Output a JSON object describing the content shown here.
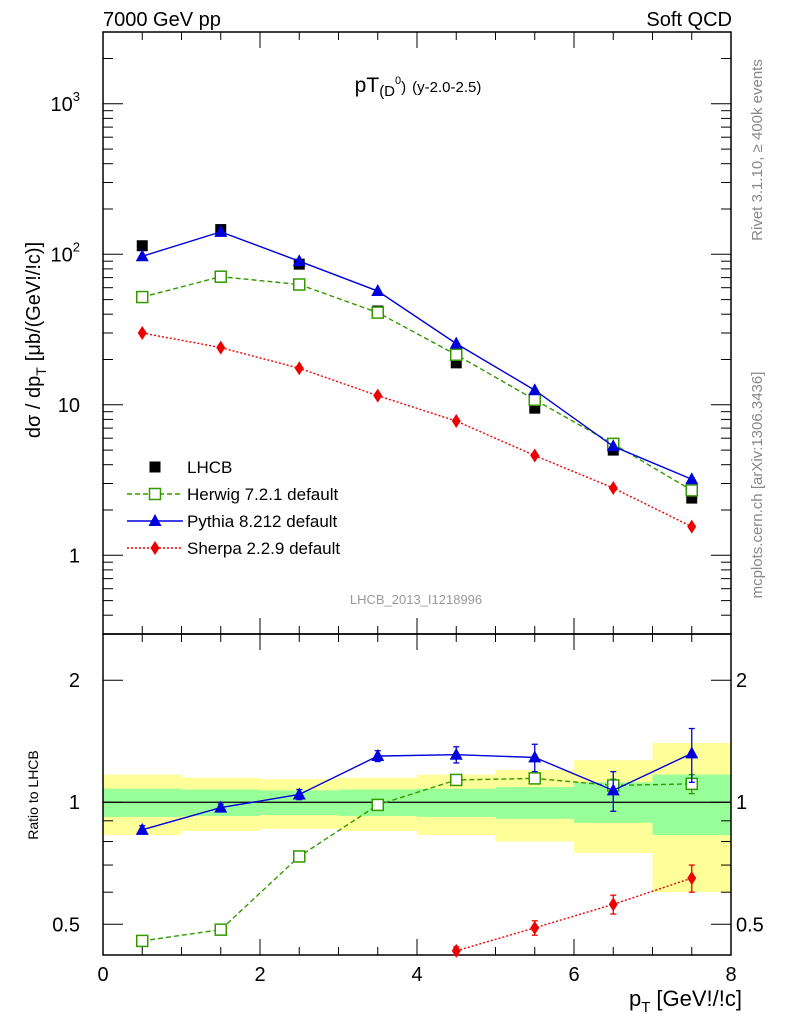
{
  "header": {
    "left": "7000 GeV pp",
    "right": "Soft QCD"
  },
  "side_labels": {
    "rivet": "Rivet 3.1.10, ≥ 400k events",
    "mcplots": "mcplots.cern.ch [arXiv:1306.3436]"
  },
  "chart_data": [
    {
      "type": "scatter",
      "panel": "main",
      "title_main": "pT",
      "title_sub": "(D",
      "title_sup": "0",
      "title_close": ")",
      "title_suffix": "(y-2.0-2.5)",
      "ylabel": "dσ / dp",
      "ylabel_sub": "T",
      "ylabel_unit": "[μb/(GeV!/!c)]",
      "yscale": "log",
      "ylim": [
        0.3,
        3000
      ],
      "xlim": [
        0,
        8
      ],
      "grid": false,
      "legend_position": "lower-left",
      "y_tick_labels": [
        "1",
        "10",
        "10",
        "10"
      ],
      "y_tick_sups": [
        "",
        "",
        "2",
        "3"
      ],
      "watermark": "LHCB_2013_I1218996",
      "x": [
        0.5,
        1.5,
        2.5,
        3.5,
        4.5,
        5.5,
        6.5,
        7.5
      ],
      "series": [
        {
          "name": "LHCB",
          "color": "#000000",
          "marker": "filled-square",
          "line": "none",
          "values": [
            114,
            146,
            86,
            42,
            19,
            9.5,
            5.0,
            2.4
          ]
        },
        {
          "name": "Herwig 7.2.1 default",
          "color": "#339900",
          "marker": "open-square",
          "line": "dashed",
          "values": [
            52,
            71,
            63,
            41,
            21.5,
            10.8,
            5.5,
            2.7
          ]
        },
        {
          "name": "Pythia 8.212 default",
          "color": "#0000dd",
          "marker": "filled-triangle",
          "line": "solid",
          "values": [
            97,
            141,
            90,
            57,
            25.5,
            12.5,
            5.3,
            3.2
          ]
        },
        {
          "name": "Sherpa 2.2.9 default",
          "color": "#ee0000",
          "marker": "filled-diamond",
          "line": "dotted",
          "values": [
            30,
            24,
            17.5,
            11.5,
            7.8,
            4.6,
            2.8,
            1.55
          ]
        }
      ]
    },
    {
      "type": "scatter",
      "panel": "ratio",
      "ylabel": "Ratio to LHCB",
      "yscale": "log",
      "ylim": [
        0.42,
        2.6
      ],
      "y_tick_labels": [
        "0.5",
        "1",
        "2"
      ],
      "xlabel": "p",
      "xlabel_sub": "T",
      "xlabel_unit": "[GeV!/!c]",
      "x_tick_labels": [
        "0",
        "2",
        "4",
        "6",
        "8"
      ],
      "reference_line": 1,
      "uncertainty_bands": {
        "bin_edges": [
          0,
          1,
          2,
          3,
          4,
          5,
          6,
          7,
          8
        ],
        "inner_color": "#99ff99",
        "outer_color": "#ffff99",
        "inner_low": [
          0.92,
          0.925,
          0.93,
          0.925,
          0.92,
          0.91,
          0.89,
          0.83
        ],
        "inner_high": [
          1.08,
          1.075,
          1.07,
          1.075,
          1.08,
          1.09,
          1.12,
          1.17
        ],
        "outer_low": [
          0.83,
          0.85,
          0.86,
          0.85,
          0.83,
          0.8,
          0.75,
          0.6
        ],
        "outer_high": [
          1.17,
          1.15,
          1.14,
          1.15,
          1.17,
          1.2,
          1.27,
          1.4
        ]
      },
      "x": [
        0.5,
        1.5,
        2.5,
        3.5,
        4.5,
        5.5,
        6.5,
        7.5
      ],
      "series": [
        {
          "name": "Herwig 7.2.1 default",
          "color": "#339900",
          "marker": "open-square",
          "line": "dashed",
          "x": [
            0.5,
            1.5,
            2.5,
            3.5,
            4.5,
            5.5,
            6.5,
            7.5
          ],
          "values": [
            0.455,
            0.485,
            0.735,
            0.985,
            1.135,
            1.145,
            1.1,
            1.11
          ],
          "err": [
            0,
            0,
            0,
            0.01,
            0.015,
            0.02,
            0.04,
            0.06
          ]
        },
        {
          "name": "Pythia 8.212 default",
          "color": "#0000dd",
          "marker": "filled-triangle",
          "line": "solid",
          "x": [
            0.5,
            1.5,
            2.5,
            3.5,
            4.5,
            5.5,
            6.5,
            7.5
          ],
          "values": [
            0.855,
            0.97,
            1.045,
            1.3,
            1.31,
            1.29,
            1.07,
            1.32
          ],
          "err": [
            0.02,
            0.02,
            0.03,
            0.04,
            0.06,
            0.1,
            0.12,
            0.2
          ]
        },
        {
          "name": "Sherpa 2.2.9 default",
          "color": "#ee0000",
          "marker": "filled-diamond",
          "line": "dotted",
          "x": [
            4.5,
            5.5,
            6.5,
            7.5
          ],
          "values": [
            0.43,
            0.49,
            0.56,
            0.65
          ],
          "err": [
            0.01,
            0.02,
            0.03,
            0.05
          ]
        }
      ]
    }
  ]
}
